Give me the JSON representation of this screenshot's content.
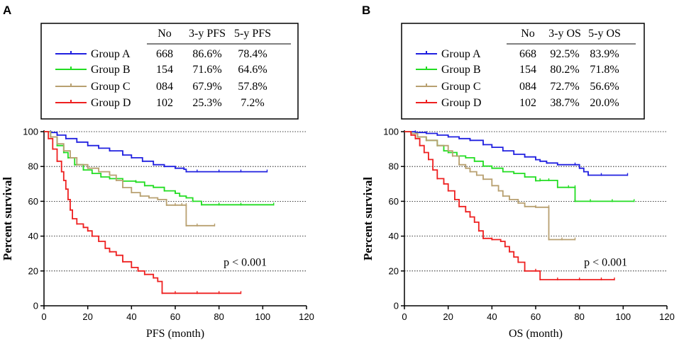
{
  "chart_data": [
    {
      "panel": "A",
      "type": "line",
      "subtype": "kaplan-meier",
      "xlabel": "PFS (month)",
      "ylabel": "Percent survival",
      "xlim": [
        0,
        120
      ],
      "ylim": [
        0,
        100
      ],
      "xticks": [
        0,
        20,
        40,
        60,
        80,
        100,
        120
      ],
      "yticks": [
        0,
        20,
        40,
        60,
        80,
        100
      ],
      "grid": "horizontal dotted",
      "p_value": "p < 0.001",
      "table": {
        "headers": [
          "No",
          "3-y PFS",
          "5-y PFS"
        ],
        "rows": [
          {
            "group": "Group A",
            "no": "668",
            "y3": "86.6%",
            "y5": "78.4%"
          },
          {
            "group": "Group B",
            "no": "154",
            "y3": "71.6%",
            "y5": "64.6%"
          },
          {
            "group": "Group C",
            "no": "084",
            "y3": "67.9%",
            "y5": "57.8%"
          },
          {
            "group": "Group D",
            "no": "102",
            "y3": "25.3%",
            "y5": "7.2%"
          }
        ]
      },
      "series": [
        {
          "name": "Group A",
          "color": "#2020e0",
          "points": [
            [
              0,
              100
            ],
            [
              3,
              99.5
            ],
            [
              6,
              98
            ],
            [
              10,
              96
            ],
            [
              15,
              94
            ],
            [
              20,
              92
            ],
            [
              25,
              90.5
            ],
            [
              30,
              89
            ],
            [
              36,
              86.6
            ],
            [
              40,
              85
            ],
            [
              45,
              83
            ],
            [
              50,
              81
            ],
            [
              55,
              80
            ],
            [
              60,
              79
            ],
            [
              64,
              78.4
            ],
            [
              65,
              77
            ],
            [
              70,
              77
            ],
            [
              80,
              77
            ],
            [
              90,
              77
            ],
            [
              102,
              77
            ]
          ]
        },
        {
          "name": "Group B",
          "color": "#22dd22",
          "points": [
            [
              0,
              100
            ],
            [
              3,
              97
            ],
            [
              6,
              92
            ],
            [
              9,
              88
            ],
            [
              11,
              85
            ],
            [
              14,
              81
            ],
            [
              18,
              78
            ],
            [
              22,
              76
            ],
            [
              26,
              74
            ],
            [
              30,
              73
            ],
            [
              36,
              71.6
            ],
            [
              42,
              71
            ],
            [
              46,
              69
            ],
            [
              50,
              68
            ],
            [
              55,
              66
            ],
            [
              60,
              64.6
            ],
            [
              62,
              63
            ],
            [
              65,
              62
            ],
            [
              68,
              60
            ],
            [
              72,
              58
            ],
            [
              80,
              58
            ],
            [
              90,
              58
            ],
            [
              105,
              58
            ]
          ]
        },
        {
          "name": "Group C",
          "color": "#b8a070",
          "points": [
            [
              0,
              100
            ],
            [
              3,
              97
            ],
            [
              6,
              93
            ],
            [
              9,
              89
            ],
            [
              12,
              85
            ],
            [
              15,
              81
            ],
            [
              20,
              79
            ],
            [
              25,
              77
            ],
            [
              30,
              75
            ],
            [
              33,
              72
            ],
            [
              36,
              67.9
            ],
            [
              40,
              65
            ],
            [
              44,
              63
            ],
            [
              48,
              62
            ],
            [
              52,
              61
            ],
            [
              56,
              57.8
            ],
            [
              60,
              57.8
            ],
            [
              63,
              57.8
            ],
            [
              65,
              57.8
            ],
            [
              65,
              46
            ],
            [
              70,
              46
            ],
            [
              78,
              46
            ]
          ]
        },
        {
          "name": "Group D",
          "color": "#ee2020",
          "points": [
            [
              0,
              100
            ],
            [
              2,
              96
            ],
            [
              4,
              90
            ],
            [
              6,
              83
            ],
            [
              8,
              77
            ],
            [
              9,
              72
            ],
            [
              10,
              67
            ],
            [
              11,
              61
            ],
            [
              12,
              55
            ],
            [
              13,
              50
            ],
            [
              15,
              47
            ],
            [
              18,
              45
            ],
            [
              20,
              43
            ],
            [
              22,
              40
            ],
            [
              25,
              37
            ],
            [
              28,
              33
            ],
            [
              30,
              31
            ],
            [
              33,
              29
            ],
            [
              36,
              25.3
            ],
            [
              40,
              22
            ],
            [
              43,
              20
            ],
            [
              46,
              18
            ],
            [
              50,
              16
            ],
            [
              52,
              14
            ],
            [
              54,
              7.2
            ],
            [
              60,
              7.2
            ],
            [
              70,
              7.2
            ],
            [
              80,
              7.2
            ],
            [
              90,
              7.2
            ]
          ]
        }
      ]
    },
    {
      "panel": "B",
      "type": "line",
      "subtype": "kaplan-meier",
      "xlabel": "OS (month)",
      "ylabel": "Percent survival",
      "xlim": [
        0,
        120
      ],
      "ylim": [
        0,
        100
      ],
      "xticks": [
        0,
        20,
        40,
        60,
        80,
        100,
        120
      ],
      "yticks": [
        0,
        20,
        40,
        60,
        80,
        100
      ],
      "grid": "horizontal dotted",
      "p_value": "p < 0.001",
      "table": {
        "headers": [
          "No",
          "3-y OS",
          "5-y OS"
        ],
        "rows": [
          {
            "group": "Group A",
            "no": "668",
            "y3": "92.5%",
            "y5": "83.9%"
          },
          {
            "group": "Group B",
            "no": "154",
            "y3": "80.2%",
            "y5": "71.8%"
          },
          {
            "group": "Group C",
            "no": "084",
            "y3": "72.7%",
            "y5": "56.6%"
          },
          {
            "group": "Group D",
            "no": "102",
            "y3": "38.7%",
            "y5": "20.0%"
          }
        ]
      },
      "series": [
        {
          "name": "Group A",
          "color": "#2020e0",
          "points": [
            [
              0,
              100
            ],
            [
              5,
              99.5
            ],
            [
              10,
              99
            ],
            [
              15,
              98
            ],
            [
              20,
              97
            ],
            [
              25,
              96
            ],
            [
              30,
              95
            ],
            [
              36,
              92.5
            ],
            [
              40,
              91
            ],
            [
              45,
              89
            ],
            [
              50,
              87
            ],
            [
              55,
              85.5
            ],
            [
              60,
              83.9
            ],
            [
              62,
              83
            ],
            [
              65,
              82
            ],
            [
              70,
              81
            ],
            [
              78,
              81
            ],
            [
              80,
              79
            ],
            [
              82,
              77
            ],
            [
              84,
              75
            ],
            [
              90,
              75
            ],
            [
              102,
              75
            ]
          ]
        },
        {
          "name": "Group B",
          "color": "#22dd22",
          "points": [
            [
              0,
              100
            ],
            [
              3,
              99
            ],
            [
              6,
              97
            ],
            [
              10,
              95
            ],
            [
              15,
              92
            ],
            [
              18,
              89
            ],
            [
              20,
              88
            ],
            [
              24,
              86
            ],
            [
              28,
              85
            ],
            [
              32,
              83
            ],
            [
              36,
              80.2
            ],
            [
              40,
              79
            ],
            [
              45,
              77
            ],
            [
              50,
              76
            ],
            [
              55,
              74
            ],
            [
              60,
              71.8
            ],
            [
              62,
              72
            ],
            [
              66,
              72
            ],
            [
              70,
              68
            ],
            [
              75,
              68
            ],
            [
              78,
              68
            ],
            [
              78,
              60
            ],
            [
              85,
              60
            ],
            [
              95,
              60
            ],
            [
              105,
              60
            ]
          ]
        },
        {
          "name": "Group C",
          "color": "#b8a070",
          "points": [
            [
              0,
              100
            ],
            [
              3,
              99
            ],
            [
              6,
              97
            ],
            [
              10,
              95
            ],
            [
              15,
              92
            ],
            [
              20,
              89
            ],
            [
              22,
              86
            ],
            [
              25,
              81
            ],
            [
              28,
              79
            ],
            [
              30,
              77
            ],
            [
              33,
              75
            ],
            [
              36,
              72.7
            ],
            [
              40,
              69
            ],
            [
              43,
              66
            ],
            [
              45,
              63
            ],
            [
              48,
              61
            ],
            [
              52,
              59
            ],
            [
              55,
              57
            ],
            [
              60,
              56.6
            ],
            [
              66,
              56.6
            ],
            [
              66,
              38
            ],
            [
              72,
              38
            ],
            [
              78,
              38
            ]
          ]
        },
        {
          "name": "Group D",
          "color": "#ee2020",
          "points": [
            [
              0,
              100
            ],
            [
              3,
              98
            ],
            [
              5,
              96
            ],
            [
              7,
              92
            ],
            [
              9,
              88
            ],
            [
              11,
              84
            ],
            [
              13,
              78
            ],
            [
              15,
              73
            ],
            [
              18,
              70
            ],
            [
              20,
              66
            ],
            [
              23,
              61
            ],
            [
              25,
              57
            ],
            [
              28,
              54
            ],
            [
              30,
              51
            ],
            [
              32,
              48
            ],
            [
              34,
              43
            ],
            [
              36,
              38.7
            ],
            [
              40,
              38
            ],
            [
              44,
              37
            ],
            [
              46,
              34
            ],
            [
              48,
              31
            ],
            [
              50,
              28
            ],
            [
              52,
              25
            ],
            [
              55,
              20
            ],
            [
              60,
              20
            ],
            [
              62,
              15
            ],
            [
              70,
              15
            ],
            [
              80,
              15
            ],
            [
              90,
              15
            ],
            [
              96,
              15
            ]
          ]
        }
      ]
    }
  ]
}
